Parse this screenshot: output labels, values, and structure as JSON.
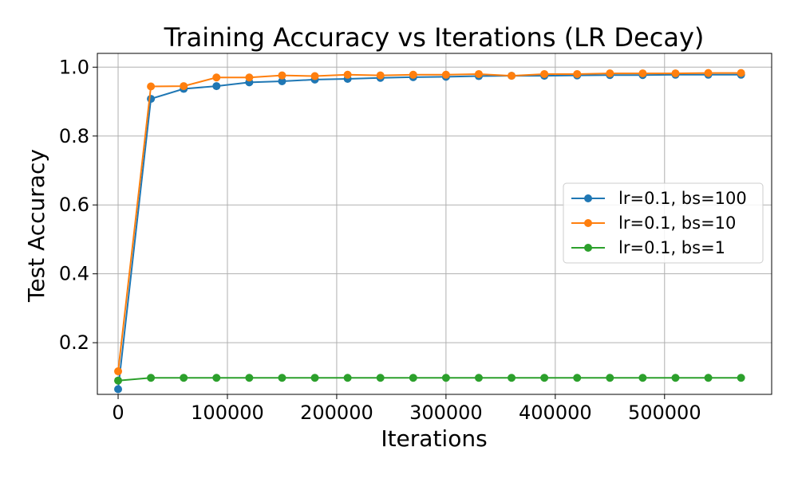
{
  "chart_data": {
    "type": "line",
    "title": "Training Accuracy vs Iterations (LR Decay)",
    "xlabel": "Iterations",
    "ylabel": "Test Accuracy",
    "xlim": [
      -19000,
      598000
    ],
    "ylim": [
      0.05,
      1.04
    ],
    "xticks": [
      0,
      100000,
      200000,
      300000,
      400000,
      500000
    ],
    "xtick_labels": [
      "0",
      "100000",
      "200000",
      "300000",
      "400000",
      "500000"
    ],
    "yticks": [
      0.2,
      0.4,
      0.6,
      0.8,
      1.0
    ],
    "ytick_labels": [
      "0.2",
      "0.4",
      "0.6",
      "0.8",
      "1.0"
    ],
    "grid": true,
    "legend_position": "center-right",
    "x": [
      0,
      30000,
      60000,
      90000,
      120000,
      150000,
      180000,
      210000,
      240000,
      270000,
      300000,
      330000,
      360000,
      390000,
      420000,
      450000,
      480000,
      510000,
      540000,
      570000
    ],
    "series": [
      {
        "name": "lr=0.1, bs=100",
        "color": "#1f77b4",
        "values": [
          0.065,
          0.908,
          0.937,
          0.945,
          0.956,
          0.959,
          0.964,
          0.966,
          0.969,
          0.971,
          0.972,
          0.974,
          0.975,
          0.975,
          0.976,
          0.977,
          0.977,
          0.978,
          0.978,
          0.978
        ]
      },
      {
        "name": "lr=0.1, bs=10",
        "color": "#ff7f0e",
        "values": [
          0.117,
          0.944,
          0.945,
          0.97,
          0.97,
          0.976,
          0.974,
          0.978,
          0.976,
          0.978,
          0.978,
          0.98,
          0.975,
          0.98,
          0.98,
          0.982,
          0.982,
          0.982,
          0.983,
          0.983
        ]
      },
      {
        "name": "lr=0.1, bs=1",
        "color": "#2ca02c",
        "values": [
          0.09,
          0.098,
          0.098,
          0.098,
          0.098,
          0.098,
          0.098,
          0.098,
          0.098,
          0.098,
          0.098,
          0.098,
          0.098,
          0.098,
          0.098,
          0.098,
          0.098,
          0.098,
          0.098,
          0.098
        ]
      }
    ]
  }
}
